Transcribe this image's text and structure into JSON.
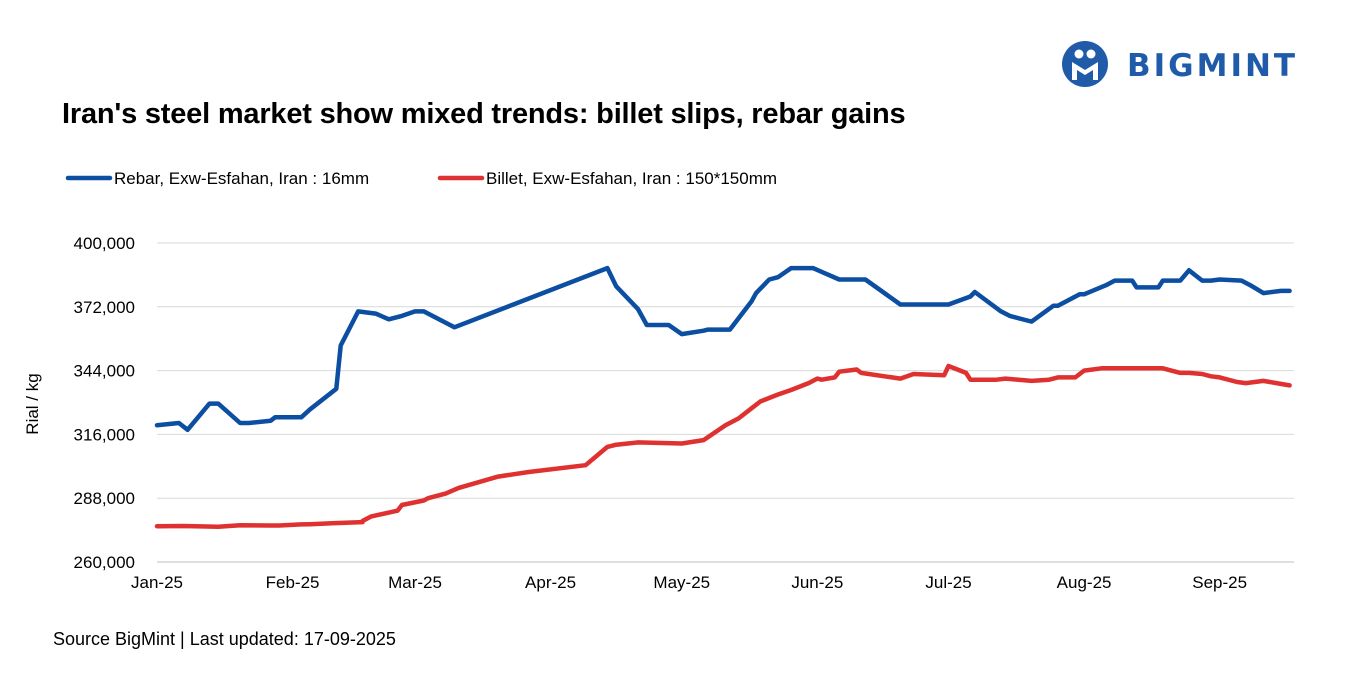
{
  "brand": {
    "name": "BIGMINT",
    "color": "#1f5ba8"
  },
  "title": "Iran's steel market show mixed trends: billet slips, rebar gains",
  "footer": "Source BigMint | Last updated: 17-09-2025",
  "chart_data": {
    "type": "line",
    "ylabel": "Rial / kg",
    "ylim": [
      260000,
      400000
    ],
    "yticks": [
      260000,
      288000,
      316000,
      344000,
      372000,
      400000
    ],
    "ytick_labels": [
      "260,000",
      "288,000",
      "316,000",
      "344,000",
      "372,000",
      "400,000"
    ],
    "xlim": [
      0,
      260
    ],
    "xticks": [
      {
        "day": 0,
        "label": "Jan-25"
      },
      {
        "day": 31,
        "label": "Feb-25"
      },
      {
        "day": 59,
        "label": "Mar-25"
      },
      {
        "day": 90,
        "label": "Apr-25"
      },
      {
        "day": 120,
        "label": "May-25"
      },
      {
        "day": 151,
        "label": "Jun-25"
      },
      {
        "day": 181,
        "label": "Jul-25"
      },
      {
        "day": 212,
        "label": "Aug-25"
      },
      {
        "day": 243,
        "label": "Sep-25"
      }
    ],
    "grid": "horizontal",
    "legend_position": "top-left",
    "series": [
      {
        "name": "Rebar, Exw-Esfahan, Iran : 16mm",
        "color": "#0b4ea2",
        "x": [
          0,
          5,
          7,
          12,
          14,
          19,
          21,
          26,
          27,
          33,
          35,
          41,
          42,
          46,
          50,
          53,
          56,
          59,
          61,
          68,
          103,
          105,
          110,
          112,
          117,
          120,
          125,
          126,
          131,
          136,
          137,
          140,
          142,
          145,
          150,
          153,
          156,
          160,
          162,
          170,
          180,
          181,
          186,
          187,
          193,
          195,
          199,
          200,
          205,
          206,
          211,
          212,
          217,
          219,
          223,
          224,
          229,
          230,
          234,
          236,
          239,
          241,
          243,
          248,
          250,
          253,
          257,
          259
        ],
        "y": [
          320000,
          321000,
          318000,
          329500,
          329500,
          321000,
          321000,
          322000,
          323500,
          323500,
          327000,
          336000,
          355000,
          370000,
          369000,
          366500,
          368000,
          370000,
          370000,
          363000,
          389000,
          381000,
          371000,
          364000,
          364000,
          360000,
          361500,
          362000,
          362000,
          374500,
          378000,
          384000,
          385000,
          389000,
          389000,
          386500,
          384000,
          384000,
          384000,
          373000,
          373000,
          373000,
          376500,
          378500,
          370000,
          368000,
          366000,
          365500,
          372500,
          372500,
          377500,
          377500,
          381500,
          383500,
          383500,
          380500,
          380500,
          383500,
          383500,
          388000,
          383500,
          383500,
          384000,
          383500,
          381500,
          378000,
          379000,
          379000
        ]
      },
      {
        "name": "Billet, Exw-Esfahan, Iran : 150*150mm",
        "color": "#e03131",
        "x": [
          0,
          6,
          14,
          19,
          26,
          28,
          33,
          35,
          40,
          47,
          47,
          49,
          55,
          56,
          61,
          62,
          66,
          69,
          78,
          85,
          98,
          103,
          105,
          110,
          120,
          125,
          130,
          133,
          136,
          138,
          142,
          145,
          149,
          151,
          152,
          155,
          156,
          160,
          161,
          170,
          173,
          180,
          181,
          185,
          186,
          189,
          192,
          194,
          197,
          200,
          204,
          206,
          210,
          212,
          216,
          218,
          222,
          226,
          230,
          234,
          236,
          239,
          241,
          243,
          247,
          249,
          253,
          256,
          259
        ],
        "y": [
          275700,
          275800,
          275500,
          276100,
          276000,
          276000,
          276500,
          276600,
          277000,
          277500,
          278000,
          280000,
          282500,
          285000,
          287000,
          288000,
          290000,
          292500,
          297500,
          299500,
          302500,
          310500,
          311500,
          312500,
          312000,
          313500,
          320000,
          323000,
          327500,
          330500,
          333500,
          335500,
          338500,
          340500,
          340000,
          341000,
          343500,
          344500,
          343000,
          340500,
          342500,
          342000,
          346000,
          343000,
          340000,
          340000,
          340000,
          340500,
          340000,
          339500,
          340000,
          341000,
          341000,
          344000,
          345000,
          345000,
          345000,
          345000,
          345000,
          343000,
          343000,
          342500,
          341500,
          341000,
          339000,
          338500,
          339500,
          338500,
          337500
        ]
      }
    ]
  }
}
